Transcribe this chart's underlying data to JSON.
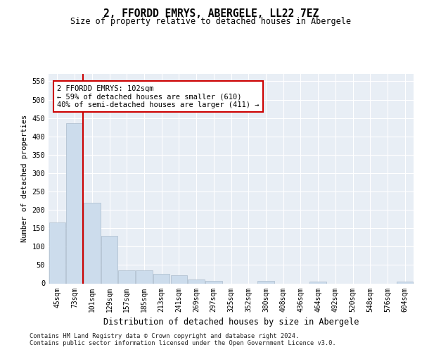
{
  "title": "2, FFORDD EMRYS, ABERGELE, LL22 7EZ",
  "subtitle": "Size of property relative to detached houses in Abergele",
  "xlabel": "Distribution of detached houses by size in Abergele",
  "ylabel": "Number of detached properties",
  "categories": [
    "45sqm",
    "73sqm",
    "101sqm",
    "129sqm",
    "157sqm",
    "185sqm",
    "213sqm",
    "241sqm",
    "269sqm",
    "297sqm",
    "325sqm",
    "352sqm",
    "380sqm",
    "408sqm",
    "436sqm",
    "464sqm",
    "492sqm",
    "520sqm",
    "548sqm",
    "576sqm",
    "604sqm"
  ],
  "values": [
    165,
    435,
    220,
    130,
    36,
    36,
    25,
    22,
    10,
    6,
    0,
    0,
    6,
    0,
    0,
    5,
    0,
    0,
    0,
    0,
    5
  ],
  "bar_color": "#ccdcec",
  "bar_edge_color": "#aabbcc",
  "vline_color": "#cc0000",
  "vline_x": 1.5,
  "annotation_text": "2 FFORDD EMRYS: 102sqm\n← 59% of detached houses are smaller (610)\n40% of semi-detached houses are larger (411) →",
  "annotation_box_color": "#ffffff",
  "annotation_box_edge": "#cc0000",
  "ylim": [
    0,
    570
  ],
  "yticks": [
    0,
    50,
    100,
    150,
    200,
    250,
    300,
    350,
    400,
    450,
    500,
    550
  ],
  "background_color": "#e8eef5",
  "footer_line1": "Contains HM Land Registry data © Crown copyright and database right 2024.",
  "footer_line2": "Contains public sector information licensed under the Open Government Licence v3.0."
}
